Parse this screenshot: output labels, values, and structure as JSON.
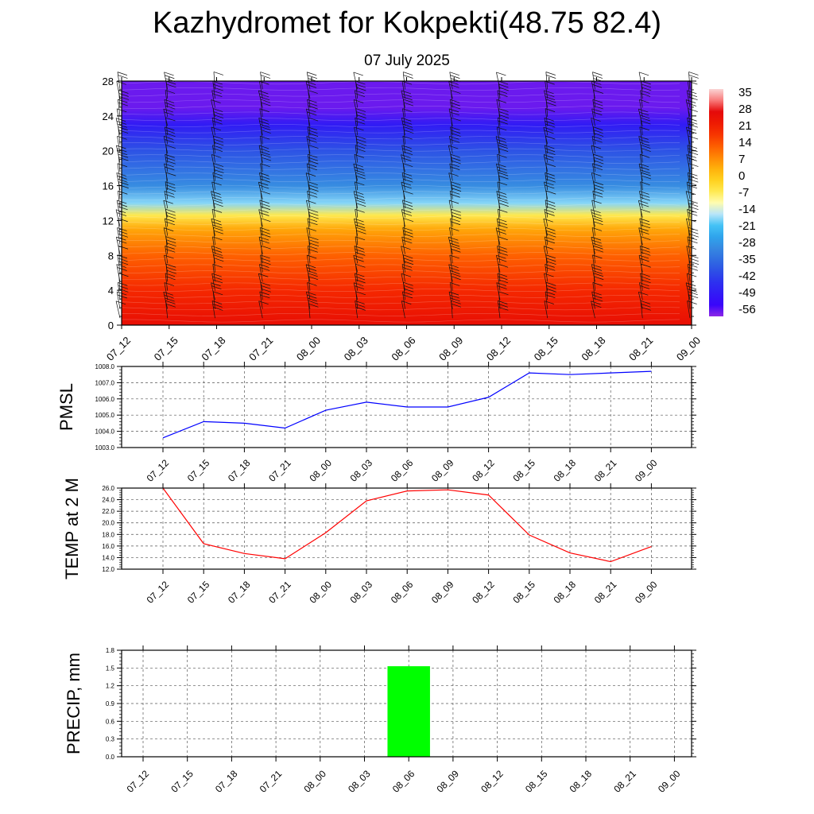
{
  "title": "Kazhydromet for Kokpekti(48.75 82.4)",
  "subtitle": "07 July 2025",
  "time_labels": [
    "07_12",
    "07_15",
    "07_18",
    "07_21",
    "08_00",
    "08_03",
    "08_06",
    "08_09",
    "08_12",
    "08_15",
    "08_18",
    "08_21",
    "09_00"
  ],
  "chart_data": [
    {
      "type": "heatmap",
      "ylim": [
        0,
        28
      ],
      "y_ticks": [
        "0",
        "4",
        "8",
        "12",
        "16",
        "20",
        "24",
        "28"
      ],
      "colorbar": {
        "labels": [
          "35",
          "28",
          "21",
          "14",
          "7",
          "0",
          "-7",
          "-14",
          "-21",
          "-28",
          "-35",
          "-42",
          "-49",
          "-56"
        ],
        "range": [
          -60,
          38
        ]
      },
      "profile": [
        {
          "level": 0,
          "value": 26
        },
        {
          "level": 4,
          "value": 20
        },
        {
          "level": 8,
          "value": 13
        },
        {
          "level": 11,
          "value": 5
        },
        {
          "level": 12.6,
          "value": -6
        },
        {
          "level": 14,
          "value": -18
        },
        {
          "level": 16,
          "value": -30
        },
        {
          "level": 20,
          "value": -40
        },
        {
          "level": 23,
          "value": -50
        },
        {
          "level": 25,
          "value": -58
        },
        {
          "level": 28,
          "value": -58
        }
      ],
      "xlabel": "",
      "ylabel": ""
    },
    {
      "type": "line",
      "ylabel": "PMSL",
      "ylim": [
        1003.0,
        1008.0
      ],
      "y_ticks": [
        "1003.0",
        "1004.0",
        "1005.0",
        "1006.0",
        "1007.0",
        "1008.0"
      ],
      "color": "#0000ff",
      "values": [
        1003.6,
        1004.6,
        1004.5,
        1004.2,
        1005.3,
        1005.8,
        1005.5,
        1005.5,
        1006.1,
        1007.6,
        1007.5,
        1007.6,
        1007.7
      ]
    },
    {
      "type": "line",
      "ylabel": "TEMP at 2 M",
      "ylim": [
        12.0,
        26.0
      ],
      "y_ticks": [
        "12.0",
        "14.0",
        "16.0",
        "18.0",
        "20.0",
        "22.0",
        "24.0",
        "26.0"
      ],
      "color": "#ff0000",
      "values": [
        26.0,
        16.4,
        14.7,
        13.8,
        18.3,
        23.8,
        25.5,
        25.7,
        24.8,
        17.9,
        14.8,
        13.3,
        15.9
      ]
    },
    {
      "type": "bar",
      "ylabel": "PRECIP, mm",
      "ylim": [
        0.0,
        1.8
      ],
      "y_ticks": [
        "0.0",
        "0.3",
        "0.6",
        "0.9",
        "1.2",
        "1.5",
        "1.8"
      ],
      "color": "#00ff00",
      "values": [
        0,
        0,
        0,
        0,
        0,
        0,
        1.53,
        0,
        0,
        0,
        0,
        0,
        0
      ]
    }
  ]
}
